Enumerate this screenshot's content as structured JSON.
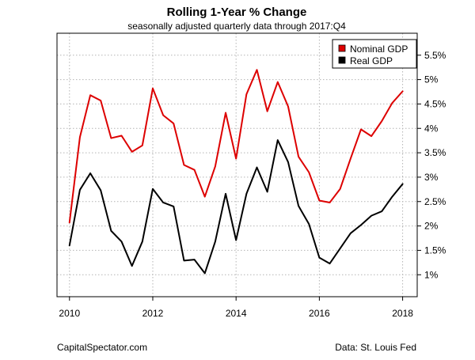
{
  "chart_data": {
    "type": "line",
    "title": "Rolling 1-Year % Change",
    "subtitle": "seasonally adjusted quarterly data through 2017:Q4",
    "xlim": [
      2009.7,
      2018.35
    ],
    "ylim": [
      0.55,
      5.95
    ],
    "x_ticks": [
      2010,
      2012,
      2014,
      2016,
      2018
    ],
    "x_tick_labels": [
      "2010",
      "2012",
      "2014",
      "2016",
      "2018"
    ],
    "y_ticks": [
      1,
      1.5,
      2,
      2.5,
      3,
      3.5,
      4,
      4.5,
      5,
      5.5
    ],
    "y_tick_labels": [
      "1%",
      "1.5%",
      "2%",
      "2.5%",
      "3%",
      "3.5%",
      "4%",
      "4.5%",
      "5%",
      "5.5%"
    ],
    "y_axis_side": "right",
    "grid": true,
    "legend_position": "top-right",
    "x": [
      2010.0,
      2010.25,
      2010.5,
      2010.75,
      2011.0,
      2011.25,
      2011.5,
      2011.75,
      2012.0,
      2012.25,
      2012.5,
      2012.75,
      2013.0,
      2013.25,
      2013.5,
      2013.75,
      2014.0,
      2014.25,
      2014.5,
      2014.75,
      2015.0,
      2015.25,
      2015.5,
      2015.75,
      2016.0,
      2016.25,
      2016.5,
      2016.75,
      2017.0,
      2017.25,
      2017.5,
      2017.75,
      2018.0
    ],
    "series": [
      {
        "name": "Nominal GDP",
        "color": "#dd0000",
        "values": [
          2.07,
          3.82,
          4.68,
          4.57,
          3.8,
          3.85,
          3.52,
          3.65,
          4.82,
          4.27,
          4.1,
          3.25,
          3.15,
          2.6,
          3.22,
          4.32,
          3.38,
          4.7,
          5.2,
          4.35,
          4.95,
          4.45,
          3.42,
          3.1,
          2.52,
          2.48,
          2.76,
          3.38,
          3.98,
          3.84,
          4.15,
          4.52,
          4.76
        ]
      },
      {
        "name": "Real GDP",
        "color": "#000000",
        "values": [
          1.6,
          2.74,
          3.08,
          2.73,
          1.9,
          1.68,
          1.18,
          1.68,
          2.76,
          2.48,
          2.4,
          1.29,
          1.31,
          1.03,
          1.68,
          2.66,
          1.71,
          2.66,
          3.2,
          2.7,
          3.76,
          3.31,
          2.41,
          2.04,
          1.35,
          1.23,
          1.54,
          1.85,
          2.02,
          2.21,
          2.3,
          2.6,
          2.86
        ]
      }
    ]
  },
  "footer": {
    "left": "CapitalSpectator.com",
    "right": "Data: St. Louis Fed"
  }
}
